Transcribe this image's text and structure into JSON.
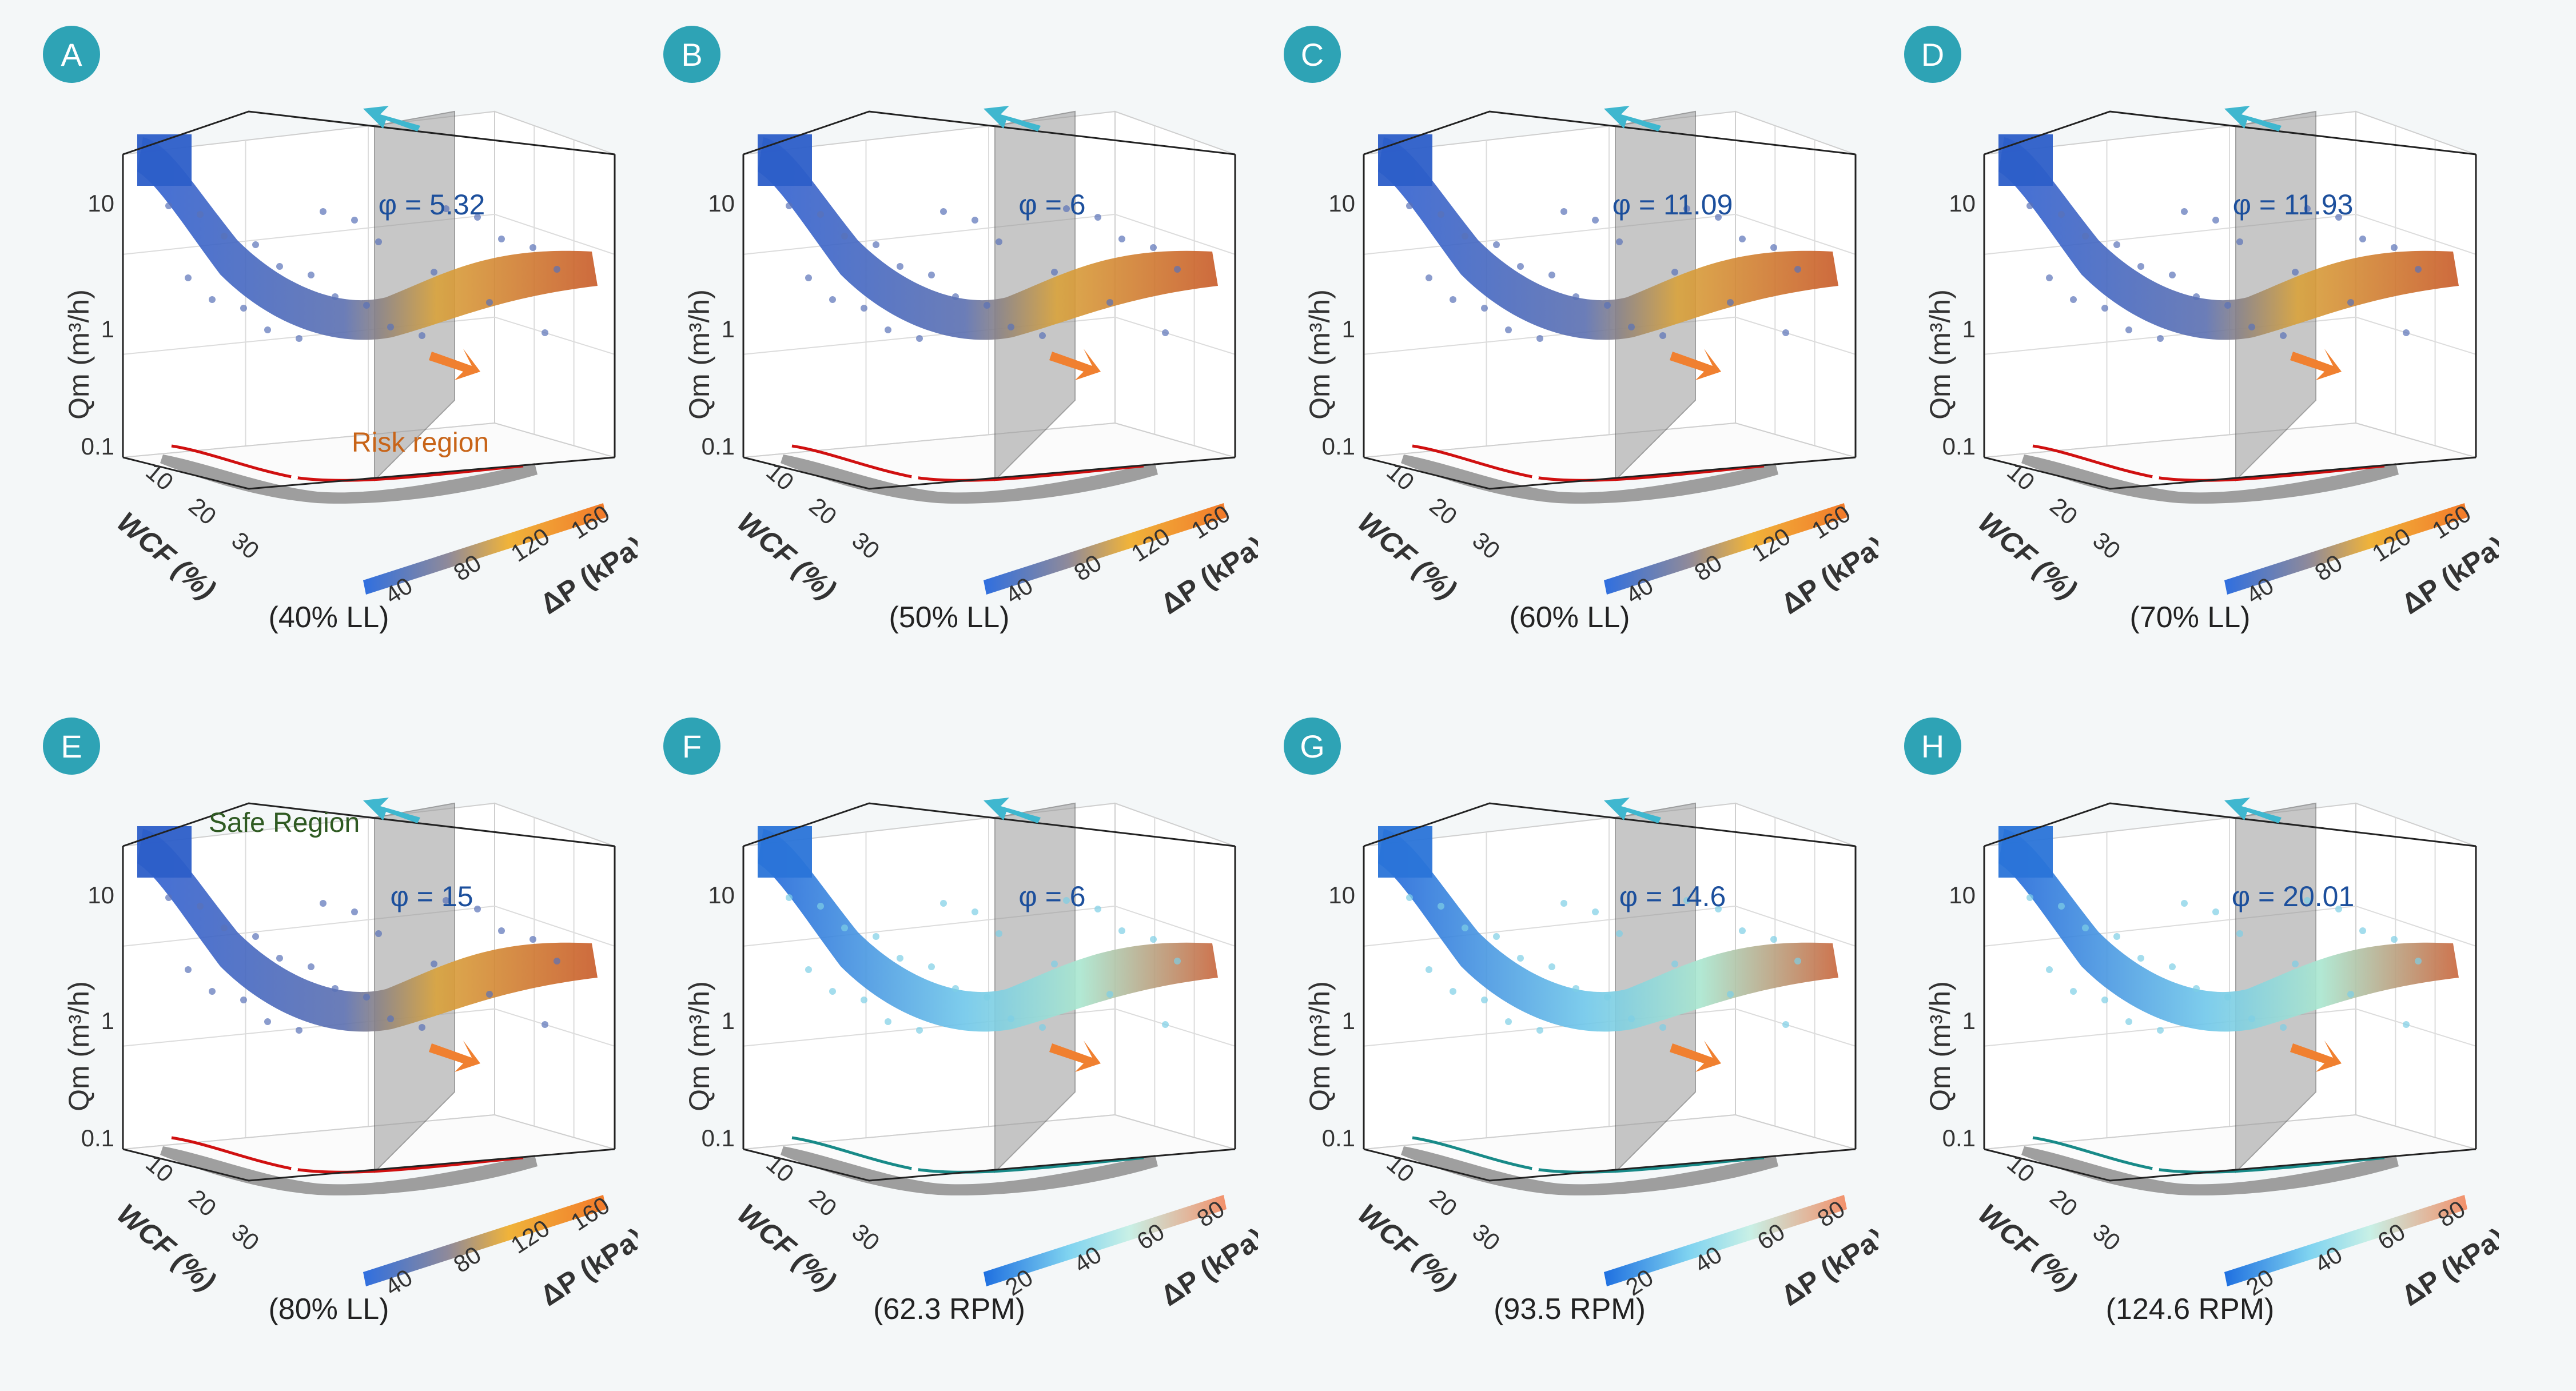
{
  "shared": {
    "axes": {
      "y_label": "Qm (m³/h)",
      "x_label": "WCF (%)",
      "z_label": "ΔP (kPa)",
      "y_ticks": [
        "0.1",
        "1",
        "10"
      ],
      "x_ticks": [
        "10",
        "20",
        "30"
      ]
    },
    "colors": {
      "badge": "#2ea3b5",
      "phi_text": "#1c4f9c",
      "risk_line": "#d01010",
      "teal_line": "#188a88",
      "arrow_orange": "#f08030",
      "arrow_cyan": "#3fb7cf",
      "wall_gray": "#9a9a9a"
    }
  },
  "chart_data": [
    {
      "label": "A",
      "type": "scatter",
      "phi": "φ = 5.32",
      "condition": "(40% LL)",
      "z_ticks": [
        "40",
        "80",
        "120",
        "160"
      ],
      "colormap": "blue-yellow-orange",
      "annotation": "Risk region"
    },
    {
      "label": "B",
      "type": "scatter",
      "phi": "φ = 6",
      "condition": "(50% LL)",
      "z_ticks": [
        "40",
        "80",
        "120",
        "160"
      ],
      "colormap": "blue-yellow-orange"
    },
    {
      "label": "C",
      "type": "scatter",
      "phi": "φ = 11.09",
      "condition": "(60% LL)",
      "z_ticks": [
        "40",
        "80",
        "120",
        "160"
      ],
      "colormap": "blue-yellow-orange"
    },
    {
      "label": "D",
      "type": "scatter",
      "phi": "φ = 11.93",
      "condition": "(70% LL)",
      "z_ticks": [
        "40",
        "80",
        "120",
        "160"
      ],
      "colormap": "blue-yellow-orange"
    },
    {
      "label": "E",
      "type": "scatter",
      "phi": "φ = 15",
      "condition": "(80% LL)",
      "z_ticks": [
        "40",
        "80",
        "120",
        "160"
      ],
      "colormap": "blue-yellow-orange",
      "annotation": "Safe Region"
    },
    {
      "label": "F",
      "type": "scatter",
      "phi": "φ = 6",
      "condition": "(62.3 RPM)",
      "z_ticks": [
        "20",
        "40",
        "60",
        "80"
      ],
      "colormap": "blue-cyan-orange"
    },
    {
      "label": "G",
      "type": "scatter",
      "phi": "φ = 14.6",
      "condition": "(93.5 RPM)",
      "z_ticks": [
        "20",
        "40",
        "60",
        "80"
      ],
      "colormap": "blue-cyan-orange"
    },
    {
      "label": "H",
      "type": "scatter",
      "phi": "φ = 20.01",
      "condition": "(124.6 RPM)",
      "z_ticks": [
        "20",
        "40",
        "60",
        "80"
      ],
      "colormap": "blue-cyan-orange"
    }
  ]
}
